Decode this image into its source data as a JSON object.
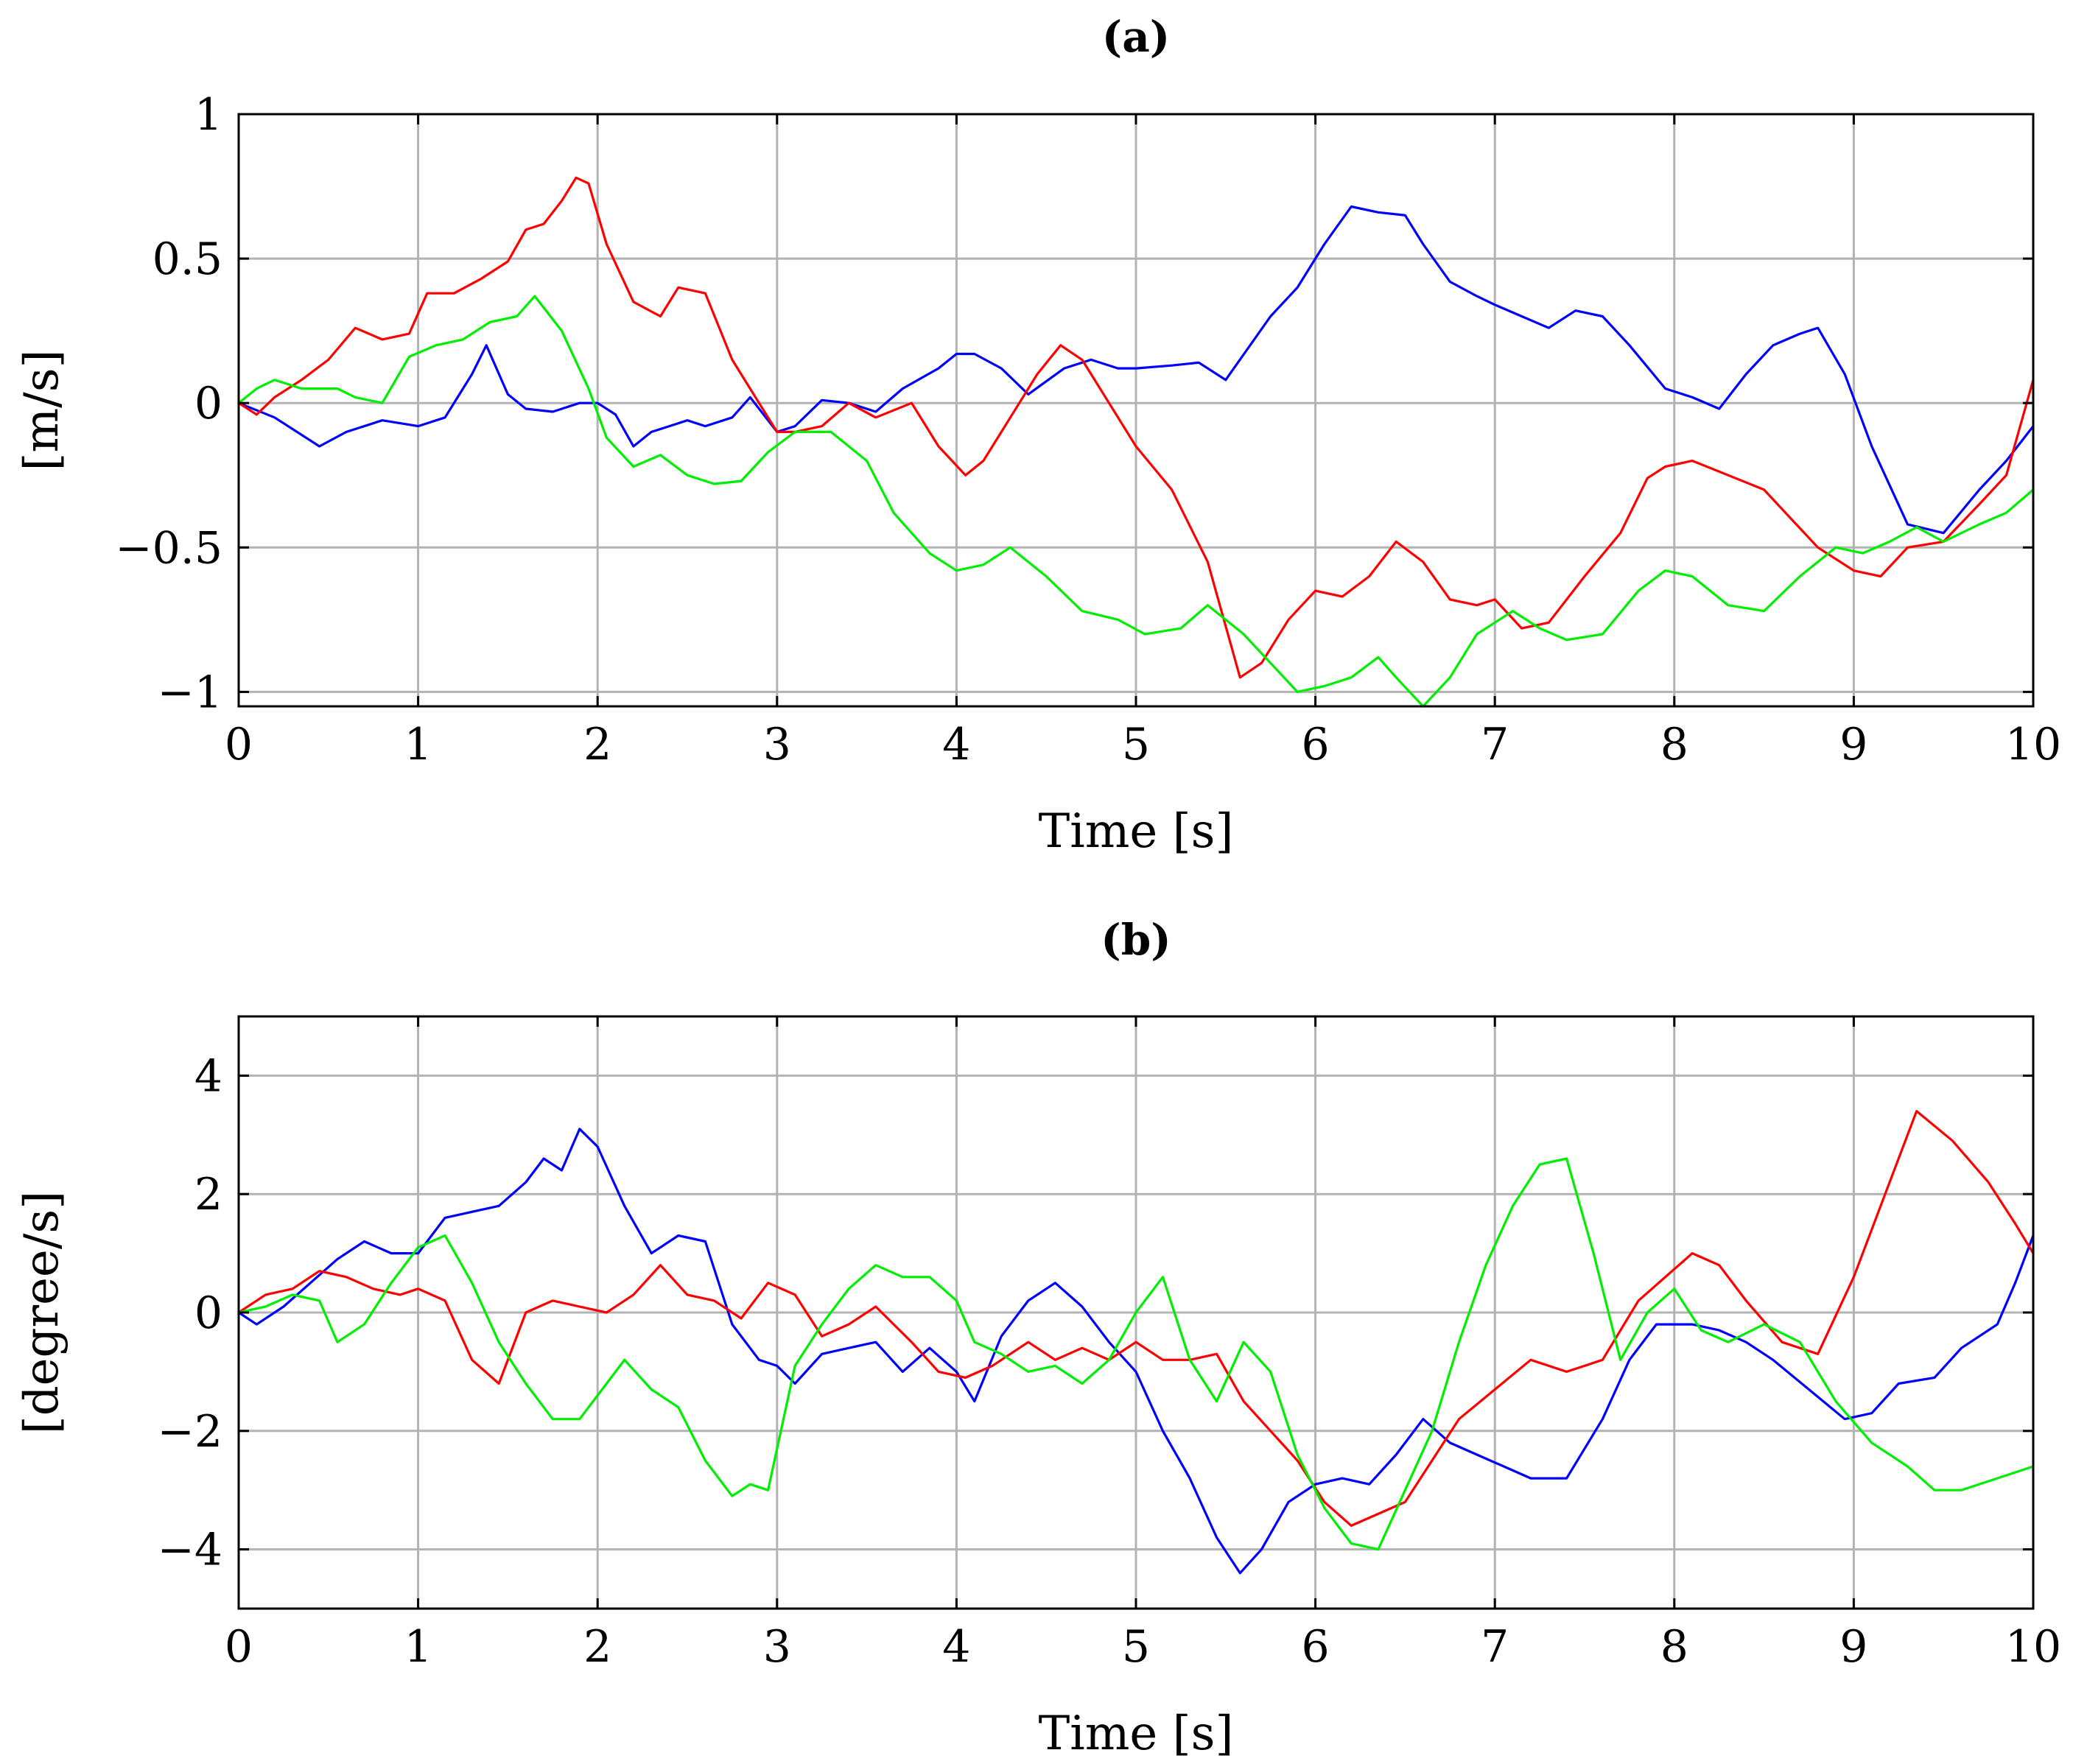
{
  "colors": {
    "blue": "#0000ff",
    "red": "#ff0000",
    "green": "#00ee00",
    "grid": "#b3b3b3"
  },
  "chart_data": [
    {
      "type": "line",
      "title": "(a)",
      "xlabel": "Time [s]",
      "ylabel": "[m/s]",
      "xlim": [
        0,
        10
      ],
      "ylim": [
        -1.05,
        1
      ],
      "grid": true,
      "xticks": [
        0,
        1,
        2,
        3,
        4,
        5,
        6,
        7,
        8,
        9,
        10
      ],
      "xtick_labels": [
        "0",
        "1",
        "2",
        "3",
        "4",
        "5",
        "6",
        "7",
        "8",
        "9",
        "10"
      ],
      "yticks": [
        -1,
        -0.5,
        0,
        0.5,
        1
      ],
      "ytick_labels": [
        "−1",
        "−0.5",
        "0",
        "0.5",
        "1"
      ],
      "series": [
        {
          "name": "blue",
          "color": "#0000ff",
          "x": [
            0,
            0.2,
            0.45,
            0.6,
            0.8,
            1.0,
            1.15,
            1.3,
            1.38,
            1.5,
            1.6,
            1.75,
            1.9,
            2.0,
            2.1,
            2.2,
            2.3,
            2.4,
            2.5,
            2.6,
            2.75,
            2.85,
            3.0,
            3.1,
            3.25,
            3.4,
            3.55,
            3.7,
            3.9,
            4.0,
            4.1,
            4.25,
            4.4,
            4.6,
            4.75,
            4.9,
            5.0,
            5.2,
            5.35,
            5.5,
            5.75,
            5.9,
            6.05,
            6.2,
            6.35,
            6.5,
            6.6,
            6.75,
            6.9,
            7.0,
            7.15,
            7.3,
            7.45,
            7.6,
            7.75,
            7.95,
            8.1,
            8.25,
            8.4,
            8.55,
            8.7,
            8.8,
            8.95,
            9.1,
            9.3,
            9.5,
            9.7,
            9.85,
            10.0
          ],
          "y": [
            0,
            -0.05,
            -0.15,
            -0.1,
            -0.06,
            -0.08,
            -0.05,
            0.1,
            0.2,
            0.03,
            -0.02,
            -0.03,
            0.0,
            0.0,
            -0.04,
            -0.15,
            -0.1,
            -0.08,
            -0.06,
            -0.08,
            -0.05,
            0.02,
            -0.1,
            -0.08,
            0.01,
            0.0,
            -0.03,
            0.05,
            0.12,
            0.17,
            0.17,
            0.12,
            0.03,
            0.12,
            0.15,
            0.12,
            0.12,
            0.13,
            0.14,
            0.08,
            0.3,
            0.4,
            0.55,
            0.68,
            0.66,
            0.65,
            0.55,
            0.42,
            0.37,
            0.34,
            0.3,
            0.26,
            0.32,
            0.3,
            0.2,
            0.05,
            0.02,
            -0.02,
            0.1,
            0.2,
            0.24,
            0.26,
            0.1,
            -0.15,
            -0.42,
            -0.45,
            -0.3,
            -0.2,
            -0.08
          ]
        },
        {
          "name": "red",
          "color": "#ff0000",
          "x": [
            0,
            0.1,
            0.2,
            0.35,
            0.5,
            0.65,
            0.8,
            0.95,
            1.05,
            1.2,
            1.35,
            1.5,
            1.6,
            1.7,
            1.8,
            1.88,
            1.95,
            2.05,
            2.2,
            2.35,
            2.45,
            2.6,
            2.75,
            2.9,
            3.0,
            3.1,
            3.25,
            3.4,
            3.55,
            3.75,
            3.9,
            4.05,
            4.15,
            4.3,
            4.45,
            4.58,
            4.7,
            4.85,
            5.0,
            5.2,
            5.4,
            5.58,
            5.7,
            5.85,
            6.0,
            6.15,
            6.3,
            6.45,
            6.6,
            6.75,
            6.9,
            7.0,
            7.15,
            7.3,
            7.5,
            7.7,
            7.85,
            7.95,
            8.1,
            8.3,
            8.5,
            8.65,
            8.8,
            9.0,
            9.15,
            9.3,
            9.5,
            9.7,
            9.85,
            10.0
          ],
          "y": [
            0,
            -0.04,
            0.02,
            0.08,
            0.15,
            0.26,
            0.22,
            0.24,
            0.38,
            0.38,
            0.43,
            0.49,
            0.6,
            0.62,
            0.7,
            0.78,
            0.76,
            0.55,
            0.35,
            0.3,
            0.4,
            0.38,
            0.15,
            0.0,
            -0.1,
            -0.1,
            -0.08,
            0.0,
            -0.05,
            0.0,
            -0.15,
            -0.25,
            -0.2,
            -0.05,
            0.1,
            0.2,
            0.15,
            0.0,
            -0.15,
            -0.3,
            -0.55,
            -0.95,
            -0.9,
            -0.75,
            -0.65,
            -0.67,
            -0.6,
            -0.48,
            -0.55,
            -0.68,
            -0.7,
            -0.68,
            -0.78,
            -0.76,
            -0.6,
            -0.45,
            -0.26,
            -0.22,
            -0.2,
            -0.25,
            -0.3,
            -0.4,
            -0.5,
            -0.58,
            -0.6,
            -0.5,
            -0.48,
            -0.35,
            -0.25,
            0.08
          ]
        },
        {
          "name": "green",
          "color": "#00ee00",
          "x": [
            0,
            0.1,
            0.2,
            0.35,
            0.55,
            0.65,
            0.8,
            0.95,
            1.1,
            1.25,
            1.4,
            1.55,
            1.65,
            1.8,
            1.95,
            2.05,
            2.2,
            2.35,
            2.5,
            2.65,
            2.8,
            2.95,
            3.1,
            3.3,
            3.5,
            3.65,
            3.85,
            4.0,
            4.15,
            4.3,
            4.5,
            4.7,
            4.9,
            5.05,
            5.25,
            5.4,
            5.6,
            5.75,
            5.9,
            6.05,
            6.2,
            6.35,
            6.45,
            6.6,
            6.75,
            6.9,
            7.1,
            7.25,
            7.4,
            7.6,
            7.8,
            7.95,
            8.1,
            8.3,
            8.5,
            8.7,
            8.9,
            9.05,
            9.2,
            9.35,
            9.5,
            9.7,
            9.85,
            10.0
          ],
          "y": [
            0,
            0.05,
            0.08,
            0.05,
            0.05,
            0.02,
            0.0,
            0.16,
            0.2,
            0.22,
            0.28,
            0.3,
            0.37,
            0.25,
            0.05,
            -0.12,
            -0.22,
            -0.18,
            -0.25,
            -0.28,
            -0.27,
            -0.17,
            -0.1,
            -0.1,
            -0.2,
            -0.38,
            -0.52,
            -0.58,
            -0.56,
            -0.5,
            -0.6,
            -0.72,
            -0.75,
            -0.8,
            -0.78,
            -0.7,
            -0.8,
            -0.9,
            -1.0,
            -0.98,
            -0.95,
            -0.88,
            -0.95,
            -1.05,
            -0.95,
            -0.8,
            -0.72,
            -0.78,
            -0.82,
            -0.8,
            -0.65,
            -0.58,
            -0.6,
            -0.7,
            -0.72,
            -0.6,
            -0.5,
            -0.52,
            -0.48,
            -0.43,
            -0.48,
            -0.42,
            -0.38,
            -0.3
          ]
        }
      ]
    },
    {
      "type": "line",
      "title": "(b)",
      "xlabel": "Time [s]",
      "ylabel": "[degree/s]",
      "xlim": [
        0,
        10
      ],
      "ylim": [
        -5,
        5
      ],
      "grid": true,
      "xticks": [
        0,
        1,
        2,
        3,
        4,
        5,
        6,
        7,
        8,
        9,
        10
      ],
      "xtick_labels": [
        "0",
        "1",
        "2",
        "3",
        "4",
        "5",
        "6",
        "7",
        "8",
        "9",
        "10"
      ],
      "yticks": [
        -4,
        -2,
        0,
        2,
        4
      ],
      "ytick_labels": [
        "−4",
        "−2",
        "0",
        "2",
        "4"
      ],
      "series": [
        {
          "name": "blue",
          "color": "#0000ff",
          "x": [
            0,
            0.1,
            0.25,
            0.4,
            0.55,
            0.7,
            0.85,
            1.0,
            1.15,
            1.3,
            1.45,
            1.6,
            1.7,
            1.8,
            1.9,
            2.0,
            2.15,
            2.3,
            2.45,
            2.6,
            2.75,
            2.9,
            3.0,
            3.1,
            3.25,
            3.4,
            3.55,
            3.7,
            3.85,
            4.0,
            4.1,
            4.25,
            4.4,
            4.55,
            4.7,
            4.85,
            5.0,
            5.15,
            5.3,
            5.45,
            5.58,
            5.7,
            5.85,
            6.0,
            6.15,
            6.3,
            6.45,
            6.6,
            6.75,
            6.9,
            7.05,
            7.2,
            7.4,
            7.6,
            7.75,
            7.9,
            8.1,
            8.25,
            8.4,
            8.55,
            8.75,
            8.95,
            9.1,
            9.25,
            9.45,
            9.6,
            9.8,
            9.9,
            10.0
          ],
          "y": [
            0,
            -0.2,
            0.1,
            0.5,
            0.9,
            1.2,
            1.0,
            1.0,
            1.6,
            1.7,
            1.8,
            2.2,
            2.6,
            2.4,
            3.1,
            2.8,
            1.8,
            1.0,
            1.3,
            1.2,
            -0.2,
            -0.8,
            -0.9,
            -1.2,
            -0.7,
            -0.6,
            -0.5,
            -1.0,
            -0.6,
            -1.0,
            -1.5,
            -0.4,
            0.2,
            0.5,
            0.1,
            -0.5,
            -1.0,
            -2.0,
            -2.8,
            -3.8,
            -4.4,
            -4.0,
            -3.2,
            -2.9,
            -2.8,
            -2.9,
            -2.4,
            -1.8,
            -2.2,
            -2.4,
            -2.6,
            -2.8,
            -2.8,
            -1.8,
            -0.8,
            -0.2,
            -0.2,
            -0.3,
            -0.5,
            -0.8,
            -1.3,
            -1.8,
            -1.7,
            -1.2,
            -1.1,
            -0.6,
            -0.2,
            0.5,
            1.3
          ]
        },
        {
          "name": "red",
          "color": "#ff0000",
          "x": [
            0,
            0.15,
            0.3,
            0.45,
            0.6,
            0.75,
            0.9,
            1.0,
            1.15,
            1.3,
            1.45,
            1.6,
            1.75,
            1.9,
            2.05,
            2.2,
            2.35,
            2.5,
            2.65,
            2.8,
            2.95,
            3.1,
            3.25,
            3.4,
            3.55,
            3.75,
            3.9,
            4.05,
            4.2,
            4.4,
            4.55,
            4.7,
            4.85,
            5.0,
            5.15,
            5.3,
            5.45,
            5.6,
            5.75,
            5.9,
            6.05,
            6.2,
            6.35,
            6.5,
            6.65,
            6.8,
            7.0,
            7.2,
            7.4,
            7.6,
            7.8,
            7.95,
            8.1,
            8.25,
            8.4,
            8.6,
            8.8,
            9.0,
            9.2,
            9.35,
            9.55,
            9.75,
            9.9,
            10.0
          ],
          "y": [
            0,
            0.3,
            0.4,
            0.7,
            0.6,
            0.4,
            0.3,
            0.4,
            0.2,
            -0.8,
            -1.2,
            0.0,
            0.2,
            0.1,
            0.0,
            0.3,
            0.8,
            0.3,
            0.2,
            -0.1,
            0.5,
            0.3,
            -0.4,
            -0.2,
            0.1,
            -0.5,
            -1.0,
            -1.1,
            -0.9,
            -0.5,
            -0.8,
            -0.6,
            -0.8,
            -0.5,
            -0.8,
            -0.8,
            -0.7,
            -1.5,
            -2.0,
            -2.5,
            -3.2,
            -3.6,
            -3.4,
            -3.2,
            -2.5,
            -1.8,
            -1.3,
            -0.8,
            -1.0,
            -0.8,
            0.2,
            0.6,
            1.0,
            0.8,
            0.2,
            -0.5,
            -0.7,
            0.6,
            2.2,
            3.4,
            2.9,
            2.2,
            1.5,
            1.0
          ]
        },
        {
          "name": "green",
          "color": "#00ee00",
          "x": [
            0,
            0.15,
            0.3,
            0.45,
            0.55,
            0.7,
            0.85,
            1.0,
            1.15,
            1.3,
            1.45,
            1.6,
            1.75,
            1.9,
            2.05,
            2.15,
            2.3,
            2.45,
            2.6,
            2.75,
            2.85,
            2.95,
            3.1,
            3.25,
            3.4,
            3.55,
            3.7,
            3.85,
            4.0,
            4.1,
            4.25,
            4.4,
            4.55,
            4.7,
            4.85,
            5.0,
            5.15,
            5.3,
            5.45,
            5.6,
            5.75,
            5.9,
            6.05,
            6.2,
            6.35,
            6.5,
            6.65,
            6.8,
            6.95,
            7.1,
            7.25,
            7.4,
            7.55,
            7.7,
            7.85,
            8.0,
            8.15,
            8.3,
            8.5,
            8.7,
            8.9,
            9.1,
            9.3,
            9.45,
            9.6,
            9.8,
            10.0
          ],
          "y": [
            0,
            0.1,
            0.3,
            0.2,
            -0.5,
            -0.2,
            0.5,
            1.1,
            1.3,
            0.5,
            -0.5,
            -1.2,
            -1.8,
            -1.8,
            -1.2,
            -0.8,
            -1.3,
            -1.6,
            -2.5,
            -3.1,
            -2.9,
            -3.0,
            -0.9,
            -0.2,
            0.4,
            0.8,
            0.6,
            0.6,
            0.2,
            -0.5,
            -0.7,
            -1.0,
            -0.9,
            -1.2,
            -0.8,
            0.0,
            0.6,
            -0.8,
            -1.5,
            -0.5,
            -1.0,
            -2.4,
            -3.3,
            -3.9,
            -4.0,
            -3.0,
            -2.0,
            -0.5,
            0.8,
            1.8,
            2.5,
            2.6,
            1.0,
            -0.8,
            0.0,
            0.4,
            -0.3,
            -0.5,
            -0.2,
            -0.5,
            -1.5,
            -2.2,
            -2.6,
            -3.0,
            -3.0,
            -2.8,
            -2.6
          ]
        }
      ]
    }
  ]
}
